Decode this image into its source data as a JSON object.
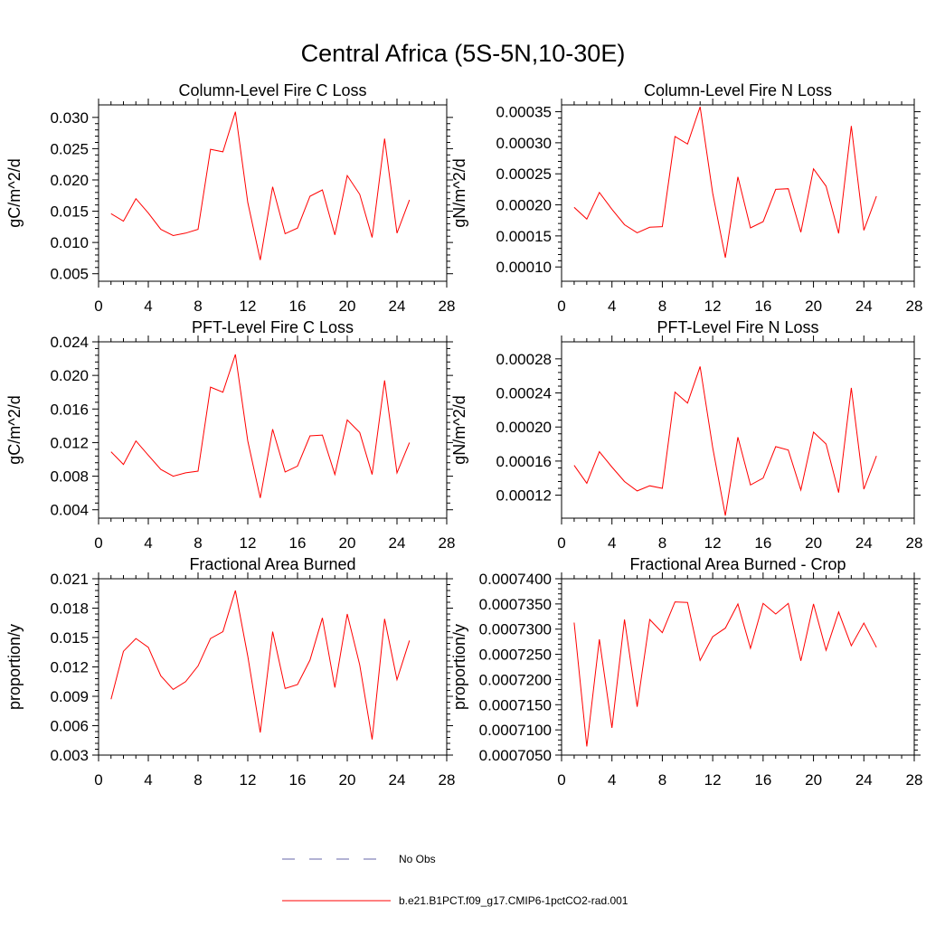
{
  "figure": {
    "title": "Central Africa (5S-5N,10-30E)"
  },
  "legend": {
    "entries": [
      {
        "label": "No Obs",
        "style": "dashed",
        "color": "#6666aa"
      },
      {
        "label": "b.e21.B1PCT.f09_g17.CMIP6-1pctCO2-rad.001",
        "style": "solid",
        "color": "#ff0000"
      }
    ]
  },
  "chart_data": [
    {
      "type": "line",
      "title": "Column-Level Fire C Loss",
      "ylabel": "gC/m^2/d",
      "xlim": [
        0,
        28
      ],
      "ylim": [
        0.0038,
        0.032
      ],
      "xticks": [
        0,
        4,
        8,
        12,
        16,
        20,
        24,
        28
      ],
      "yticks": [
        0.005,
        0.01,
        0.015,
        0.02,
        0.025,
        0.03
      ],
      "yticklabels": [
        "0.005",
        "0.010",
        "0.015",
        "0.020",
        "0.025",
        "0.030"
      ],
      "series": [
        {
          "color": "#ff0000",
          "x": [
            1,
            2,
            3,
            4,
            5,
            6,
            7,
            8,
            9,
            10,
            11,
            12,
            13,
            14,
            15,
            16,
            17,
            18,
            19,
            20,
            21,
            22,
            23,
            24,
            25
          ],
          "y": [
            0.0146,
            0.0134,
            0.017,
            0.0147,
            0.0121,
            0.0111,
            0.0115,
            0.0121,
            0.0249,
            0.0245,
            0.0309,
            0.0164,
            0.0072,
            0.0189,
            0.0114,
            0.0123,
            0.0174,
            0.0184,
            0.0112,
            0.0207,
            0.0177,
            0.0108,
            0.0266,
            0.0115,
            0.0168
          ]
        }
      ]
    },
    {
      "type": "line",
      "title": "Column-Level Fire N Loss",
      "ylabel": "gN/m^2/d",
      "xlim": [
        0,
        28
      ],
      "ylim": [
        7.7e-05,
        0.000361
      ],
      "xticks": [
        0,
        4,
        8,
        12,
        16,
        20,
        24,
        28
      ],
      "yticks": [
        0.0001,
        0.00015,
        0.0002,
        0.00025,
        0.0003,
        0.00035
      ],
      "yticklabels": [
        "0.00010",
        "0.00015",
        "0.00020",
        "0.00025",
        "0.00030",
        "0.00035"
      ],
      "series": [
        {
          "color": "#ff0000",
          "x": [
            1,
            2,
            3,
            4,
            5,
            6,
            7,
            8,
            9,
            10,
            11,
            12,
            13,
            14,
            15,
            16,
            17,
            18,
            19,
            20,
            21,
            22,
            23,
            24,
            25
          ],
          "y": [
            0.000196,
            0.000177,
            0.00022,
            0.000193,
            0.000168,
            0.000155,
            0.000164,
            0.000165,
            0.00031,
            0.000298,
            0.000358,
            0.000219,
            0.000115,
            0.000245,
            0.000163,
            0.000173,
            0.000225,
            0.000226,
            0.000156,
            0.000258,
            0.00023,
            0.000154,
            0.000327,
            0.000159,
            0.000214
          ]
        }
      ]
    },
    {
      "type": "line",
      "title": "PFT-Level Fire C Loss",
      "ylabel": "gC/m^2/d",
      "xlim": [
        0,
        28
      ],
      "ylim": [
        0.003,
        0.024
      ],
      "xticks": [
        0,
        4,
        8,
        12,
        16,
        20,
        24,
        28
      ],
      "yticks": [
        0.004,
        0.008,
        0.012,
        0.016,
        0.02,
        0.024
      ],
      "yticklabels": [
        "0.004",
        "0.008",
        "0.012",
        "0.016",
        "0.020",
        "0.024"
      ],
      "series": [
        {
          "color": "#ff0000",
          "x": [
            1,
            2,
            3,
            4,
            5,
            6,
            7,
            8,
            9,
            10,
            11,
            12,
            13,
            14,
            15,
            16,
            17,
            18,
            19,
            20,
            21,
            22,
            23,
            24,
            25
          ],
          "y": [
            0.0109,
            0.0094,
            0.0122,
            0.0105,
            0.0088,
            0.008,
            0.0084,
            0.0086,
            0.0186,
            0.018,
            0.0225,
            0.0122,
            0.0054,
            0.0136,
            0.0085,
            0.0092,
            0.0128,
            0.0129,
            0.0082,
            0.0147,
            0.0132,
            0.0082,
            0.0194,
            0.0084,
            0.012
          ]
        }
      ]
    },
    {
      "type": "line",
      "title": "PFT-Level Fire N Loss",
      "ylabel": "gN/m^2/d",
      "xlim": [
        0,
        28
      ],
      "ylim": [
        9.3e-05,
        0.0003
      ],
      "xticks": [
        0,
        4,
        8,
        12,
        16,
        20,
        24,
        28
      ],
      "yticks": [
        0.00012,
        0.00016,
        0.0002,
        0.00024,
        0.00028
      ],
      "yticklabels": [
        "0.00012",
        "0.00016",
        "0.00020",
        "0.00024",
        "0.00028"
      ],
      "series": [
        {
          "color": "#ff0000",
          "x": [
            1,
            2,
            3,
            4,
            5,
            6,
            7,
            8,
            9,
            10,
            11,
            12,
            13,
            14,
            15,
            16,
            17,
            18,
            19,
            20,
            21,
            22,
            23,
            24,
            25
          ],
          "y": [
            0.000155,
            0.000134,
            0.000171,
            0.000153,
            0.000136,
            0.000125,
            0.000131,
            0.000128,
            0.000241,
            0.000228,
            0.000271,
            0.000176,
            9.6e-05,
            0.000188,
            0.000132,
            0.00014,
            0.000177,
            0.000173,
            0.000126,
            0.000194,
            0.00018,
            0.000123,
            0.000246,
            0.000127,
            0.000166
          ]
        }
      ]
    },
    {
      "type": "line",
      "title": "Fractional Area Burned",
      "ylabel": "proportion/y",
      "xlim": [
        0,
        28
      ],
      "ylim": [
        0.003,
        0.021
      ],
      "xticks": [
        0,
        4,
        8,
        12,
        16,
        20,
        24,
        28
      ],
      "yticks": [
        0.003,
        0.006,
        0.009,
        0.012,
        0.015,
        0.018,
        0.021
      ],
      "yticklabels": [
        "0.003",
        "0.006",
        "0.009",
        "0.012",
        "0.015",
        "0.018",
        "0.021"
      ],
      "series": [
        {
          "color": "#ff0000",
          "x": [
            1,
            2,
            3,
            4,
            5,
            6,
            7,
            8,
            9,
            10,
            11,
            12,
            13,
            14,
            15,
            16,
            17,
            18,
            19,
            20,
            21,
            22,
            23,
            24,
            25
          ],
          "y": [
            0.0087,
            0.0136,
            0.0149,
            0.014,
            0.0111,
            0.0097,
            0.0105,
            0.0121,
            0.0149,
            0.0156,
            0.0198,
            0.0131,
            0.0053,
            0.0156,
            0.0098,
            0.0102,
            0.0127,
            0.017,
            0.0099,
            0.0174,
            0.0122,
            0.0046,
            0.0169,
            0.0107,
            0.0147
          ]
        }
      ]
    },
    {
      "type": "line",
      "title": "Fractional Area Burned - Crop",
      "ylabel": "proportion/y",
      "xlim": [
        0,
        28
      ],
      "ylim": [
        0.000705,
        0.00074
      ],
      "xticks": [
        0,
        4,
        8,
        12,
        16,
        20,
        24,
        28
      ],
      "yticks": [
        0.000705,
        0.00071,
        0.000715,
        0.00072,
        0.000725,
        0.00073,
        0.000735,
        0.00074
      ],
      "yticklabels": [
        "0.0007050",
        "0.0007100",
        "0.0007150",
        "0.0007200",
        "0.0007250",
        "0.0007300",
        "0.0007350",
        "0.0007400"
      ],
      "series": [
        {
          "color": "#ff0000",
          "x": [
            1,
            2,
            3,
            4,
            5,
            6,
            7,
            8,
            9,
            10,
            11,
            12,
            13,
            14,
            15,
            16,
            17,
            18,
            19,
            20,
            21,
            22,
            23,
            24,
            25
          ],
          "y": [
            0.0007313,
            0.0007067,
            0.000728,
            0.0007104,
            0.0007319,
            0.0007146,
            0.0007319,
            0.0007293,
            0.0007354,
            0.0007353,
            0.0007238,
            0.0007285,
            0.0007302,
            0.000735,
            0.0007262,
            0.0007351,
            0.000733,
            0.0007351,
            0.0007237,
            0.000735,
            0.0007258,
            0.0007334,
            0.0007267,
            0.0007312,
            0.0007264
          ]
        }
      ]
    }
  ]
}
